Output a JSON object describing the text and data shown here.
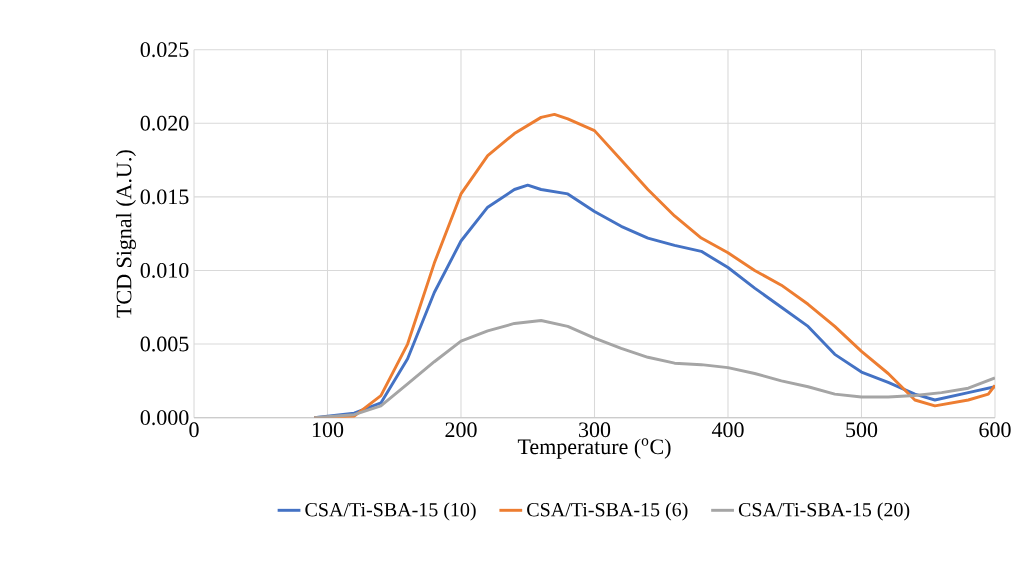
{
  "chart_data": {
    "type": "line",
    "xlabel": "Temperature ($^{o}$C)",
    "ylabel": "TCD Signal (A.U.)",
    "xlim": [
      0,
      600
    ],
    "xticks": [
      0,
      100,
      200,
      300,
      400,
      500,
      600
    ],
    "ylim": [
      0,
      0.025
    ],
    "yticks": [
      {
        "value": 0,
        "label": "0.000"
      },
      {
        "value": 0.005,
        "label": "0.005"
      },
      {
        "value": 0.01,
        "label": "0.010"
      },
      {
        "value": 0.015,
        "label": "0.015"
      },
      {
        "value": 0.02,
        "label": "0.020"
      },
      {
        "value": 0.025,
        "label": "0.025"
      }
    ],
    "grid": true,
    "legend": "bottom",
    "marker": "none",
    "line_style": "solid",
    "series": [
      {
        "name": "CSA/Ti-SBA-15 (10)",
        "color": "#4472c4",
        "x": [
          90,
          120,
          140,
          160,
          180,
          200,
          220,
          240,
          250,
          260,
          280,
          300,
          320,
          340,
          360,
          380,
          400,
          420,
          440,
          460,
          480,
          500,
          520,
          540,
          555,
          580,
          600
        ],
        "values": [
          0,
          0.0003,
          0.001,
          0.004,
          0.0085,
          0.012,
          0.0143,
          0.0155,
          0.0158,
          0.0155,
          0.0152,
          0.014,
          0.013,
          0.0122,
          0.0117,
          0.0113,
          0.0102,
          0.0088,
          0.0075,
          0.0062,
          0.0043,
          0.0031,
          0.0024,
          0.0016,
          0.0012,
          0.0017,
          0.0021
        ]
      },
      {
        "name": "CSA/Ti-SBA-15 (6)",
        "color": "#ed7d31",
        "x": [
          90,
          120,
          140,
          160,
          180,
          200,
          220,
          240,
          260,
          270,
          280,
          300,
          320,
          340,
          360,
          380,
          400,
          420,
          440,
          460,
          480,
          500,
          520,
          540,
          555,
          580,
          595,
          600
        ],
        "values": [
          0,
          0.0001,
          0.0015,
          0.005,
          0.0105,
          0.0152,
          0.0178,
          0.0193,
          0.0204,
          0.0206,
          0.0203,
          0.0195,
          0.0175,
          0.0155,
          0.0137,
          0.0122,
          0.0112,
          0.01,
          0.009,
          0.0077,
          0.0062,
          0.0045,
          0.003,
          0.0012,
          0.0008,
          0.0012,
          0.0016,
          0.0022
        ]
      },
      {
        "name": "CSA/Ti-SBA-15 (20)",
        "color": "#a5a5a5",
        "x": [
          90,
          120,
          140,
          160,
          180,
          200,
          220,
          240,
          260,
          280,
          300,
          320,
          340,
          360,
          380,
          400,
          420,
          440,
          460,
          480,
          500,
          520,
          540,
          560,
          580,
          600
        ],
        "values": [
          0,
          0.0002,
          0.0008,
          0.0023,
          0.0038,
          0.0052,
          0.0059,
          0.0064,
          0.0066,
          0.0062,
          0.0054,
          0.0047,
          0.0041,
          0.0037,
          0.0036,
          0.0034,
          0.003,
          0.0025,
          0.0021,
          0.0016,
          0.0014,
          0.0014,
          0.0015,
          0.0017,
          0.002,
          0.0027
        ]
      }
    ]
  }
}
